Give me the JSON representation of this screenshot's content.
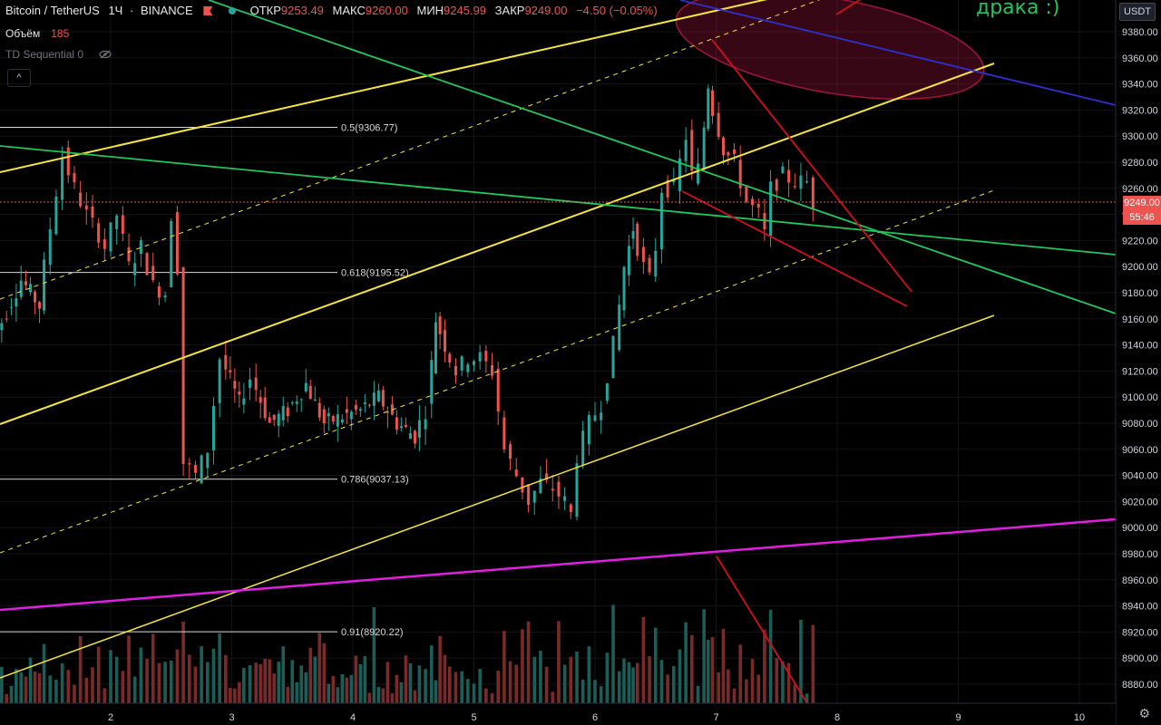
{
  "header": {
    "symbol": "Bitcoin / TetherUS",
    "interval": "1Ч",
    "exchange": "BINANCE",
    "open_label": "ОТКР",
    "open": "9253.49",
    "high_label": "МАКС",
    "high": "9260.00",
    "low_label": "МИН",
    "low": "9245.99",
    "close_label": "ЗАКР",
    "close": "9249.00",
    "change": "−4.50 (−0.05%)"
  },
  "indicators": {
    "volume_label": "Объём",
    "volume_value": "185",
    "td_label": "TD Sequential 0"
  },
  "currency_button": "USDT",
  "annotation_text": "драка :)",
  "last_price_tag": "9249.00",
  "countdown_tag": "55:46",
  "colors": {
    "up": "#26a69a",
    "down": "#ef5350",
    "yellow": "#f5e53b",
    "green": "#22c55e",
    "magenta": "#e11ee1",
    "blue": "#2f2fd0",
    "red": "#d40f1a"
  },
  "chart_data": {
    "type": "candlestick",
    "symbol": "Bitcoin / TetherUS",
    "interval": "1Ч",
    "exchange": "BINANCE",
    "y_ticks": [
      9380,
      9360,
      9340,
      9320,
      9300,
      9280,
      9260,
      9240,
      9220,
      9200,
      9180,
      9160,
      9140,
      9120,
      9100,
      9080,
      9060,
      9040,
      9020,
      9000,
      8980,
      8960,
      8940,
      8920,
      8900,
      8880
    ],
    "x_ticks": [
      "2",
      "3",
      "4",
      "5",
      "6",
      "7",
      "8",
      "9",
      "10"
    ],
    "fib_levels": [
      {
        "label": "0.5(9306.77)",
        "price": 9306.77
      },
      {
        "label": "0.618(9195.52)",
        "price": 9195.52
      },
      {
        "label": "0.786(9037.13)",
        "price": 9037.13
      },
      {
        "label": "0.91(8920.22)",
        "price": 8920.22
      }
    ],
    "last_price": 9249.0,
    "ohlc_path": [
      [
        1.0,
        9130
      ],
      [
        1.1,
        9150
      ],
      [
        1.3,
        9190
      ],
      [
        1.45,
        9170
      ],
      [
        1.55,
        9230
      ],
      [
        1.65,
        9285
      ],
      [
        1.75,
        9260
      ],
      [
        1.85,
        9240
      ],
      [
        1.95,
        9225
      ],
      [
        2.0,
        9215
      ],
      [
        2.1,
        9240
      ],
      [
        2.2,
        9200
      ],
      [
        2.3,
        9215
      ],
      [
        2.4,
        9185
      ],
      [
        2.5,
        9180
      ],
      [
        2.55,
        9240
      ],
      [
        2.6,
        9200
      ],
      [
        2.65,
        9050
      ],
      [
        2.75,
        9040
      ],
      [
        2.85,
        9060
      ],
      [
        2.95,
        9130
      ],
      [
        3.1,
        9095
      ],
      [
        3.2,
        9115
      ],
      [
        3.35,
        9080
      ],
      [
        3.5,
        9090
      ],
      [
        3.65,
        9110
      ],
      [
        3.8,
        9080
      ],
      [
        3.95,
        9085
      ],
      [
        4.1,
        9090
      ],
      [
        4.25,
        9100
      ],
      [
        4.4,
        9080
      ],
      [
        4.55,
        9070
      ],
      [
        4.65,
        9090
      ],
      [
        4.72,
        9160
      ],
      [
        4.8,
        9140
      ],
      [
        4.9,
        9120
      ],
      [
        5.0,
        9130
      ],
      [
        5.1,
        9130
      ],
      [
        5.2,
        9120
      ],
      [
        5.3,
        9060
      ],
      [
        5.4,
        9040
      ],
      [
        5.5,
        9020
      ],
      [
        5.6,
        9035
      ],
      [
        5.7,
        9030
      ],
      [
        5.8,
        9020
      ],
      [
        5.85,
        9010
      ],
      [
        5.9,
        9055
      ],
      [
        6.0,
        9080
      ],
      [
        6.1,
        9095
      ],
      [
        6.2,
        9140
      ],
      [
        6.28,
        9200
      ],
      [
        6.35,
        9230
      ],
      [
        6.45,
        9200
      ],
      [
        6.5,
        9190
      ],
      [
        6.55,
        9215
      ],
      [
        6.6,
        9260
      ],
      [
        6.7,
        9260
      ],
      [
        6.8,
        9300
      ],
      [
        6.85,
        9270
      ],
      [
        6.9,
        9275
      ],
      [
        6.97,
        9340
      ],
      [
        7.02,
        9320
      ],
      [
        7.1,
        9290
      ],
      [
        7.2,
        9280
      ],
      [
        7.3,
        9250
      ],
      [
        7.4,
        9240
      ],
      [
        7.45,
        9225
      ],
      [
        7.5,
        9260
      ],
      [
        7.6,
        9270
      ],
      [
        7.7,
        9265
      ],
      [
        7.8,
        9265
      ],
      [
        7.83,
        9249
      ]
    ],
    "volume": {
      "label": "Объём",
      "last": 185
    }
  }
}
